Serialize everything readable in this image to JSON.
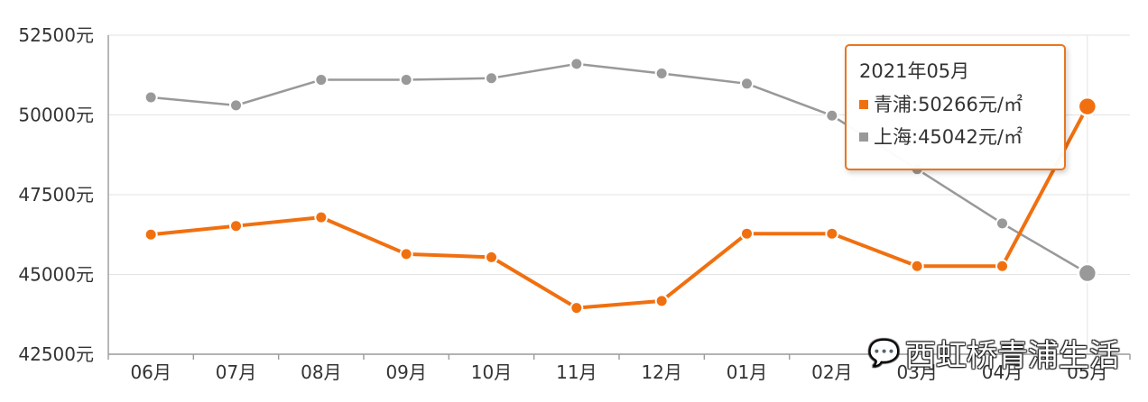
{
  "chart_data": {
    "type": "line",
    "categories": [
      "06月",
      "07月",
      "08月",
      "09月",
      "10月",
      "11月",
      "12月",
      "01月",
      "02月",
      "03月",
      "04月",
      "05月"
    ],
    "series": [
      {
        "name": "上海",
        "color": "#999999",
        "values": [
          50550,
          50300,
          51100,
          51100,
          51150,
          51600,
          51300,
          50980,
          49980,
          48300,
          46600,
          45042
        ]
      },
      {
        "name": "青浦",
        "color": "#f07010",
        "values": [
          46250,
          46520,
          46790,
          45640,
          45540,
          43950,
          44170,
          46280,
          46280,
          45260,
          45260,
          50266
        ]
      }
    ],
    "y_ticks": [
      42500,
      45000,
      47500,
      50000,
      52500
    ],
    "y_tick_labels": [
      "42500元",
      "45000元",
      "47500元",
      "50000元",
      "52500元"
    ],
    "ylim": [
      42500,
      52500
    ],
    "title": "",
    "xlabel": "",
    "ylabel": ""
  },
  "tooltip": {
    "title": "2021年05月",
    "rows": [
      {
        "label": "青浦:50266元/㎡",
        "color": "#f07010"
      },
      {
        "label": "上海:45042元/㎡",
        "color": "#999999"
      }
    ]
  },
  "watermark": {
    "icon": "wechat-icon",
    "text": "西虹桥青浦生活"
  }
}
